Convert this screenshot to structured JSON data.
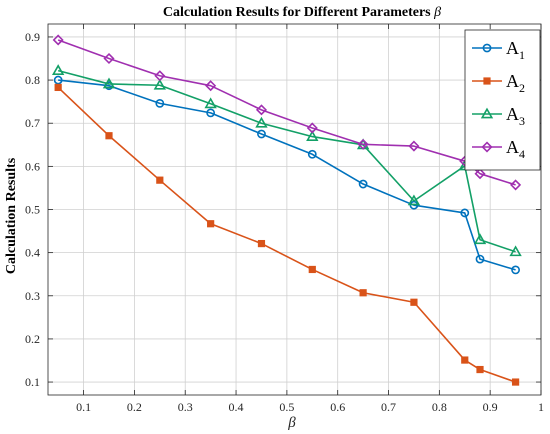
{
  "chart_data": {
    "type": "line",
    "title_text": "Calculation Results for Different Parameters ",
    "title_symbol": "β",
    "xlabel": "β",
    "ylabel": "Calculation Results",
    "xlim": [
      0.03,
      1.0
    ],
    "ylim": [
      0.07,
      0.93
    ],
    "xticks": [
      0.1,
      0.2,
      0.3,
      0.4,
      0.5,
      0.6,
      0.7,
      0.8,
      0.9,
      1
    ],
    "xtick_labels": [
      "0.1",
      "0.2",
      "0.3",
      "0.4",
      "0.5",
      "0.6",
      "0.7",
      "0.8",
      "0.9",
      "1"
    ],
    "yticks": [
      0.1,
      0.2,
      0.3,
      0.4,
      0.5,
      0.6,
      0.7,
      0.8,
      0.9
    ],
    "ytick_labels": [
      "0.1",
      "0.2",
      "0.3",
      "0.4",
      "0.5",
      "0.6",
      "0.7",
      "0.8",
      "0.9"
    ],
    "grid": true,
    "legend_position": "top-right",
    "x": [
      0.05,
      0.15,
      0.25,
      0.35,
      0.45,
      0.55,
      0.65,
      0.75,
      0.85,
      0.88,
      0.95
    ],
    "series": [
      {
        "name_base": "A",
        "name_sub": "1",
        "color": "#0072BD",
        "marker": "circle",
        "values": [
          0.8,
          0.787,
          0.746,
          0.724,
          0.675,
          0.628,
          0.559,
          0.51,
          0.492,
          0.385,
          0.36
        ]
      },
      {
        "name_base": "A",
        "name_sub": "2",
        "color": "#D95319",
        "marker": "square",
        "values": [
          0.783,
          0.671,
          0.568,
          0.467,
          0.421,
          0.361,
          0.307,
          0.285,
          0.151,
          0.129,
          0.1
        ]
      },
      {
        "name_base": "A",
        "name_sub": "3",
        "color": "#13A067",
        "marker": "triangle",
        "values": [
          0.822,
          0.791,
          0.788,
          0.745,
          0.7,
          0.669,
          0.65,
          0.52,
          0.601,
          0.43,
          0.402
        ]
      },
      {
        "name_base": "A",
        "name_sub": "4",
        "color": "#A02FB0",
        "marker": "diamond",
        "values": [
          0.893,
          0.85,
          0.81,
          0.787,
          0.731,
          0.689,
          0.651,
          0.647,
          0.612,
          0.583,
          0.557
        ]
      }
    ]
  }
}
